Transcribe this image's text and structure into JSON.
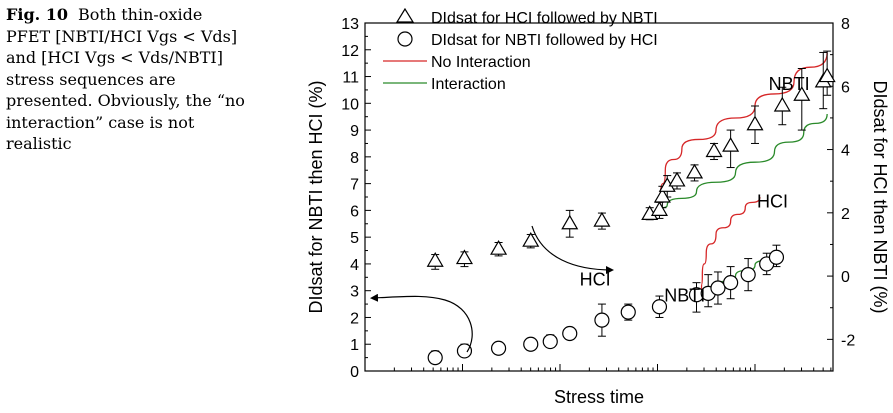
{
  "caption": {
    "label": "Fig. 10",
    "lines": [
      "Both thin-oxide",
      "PFET [NBTI/HCI Vgs < Vds]",
      "and [HCI Vgs < Vds/NBTI]",
      "stress sequences are",
      "presented. Obviously, the “no",
      "interaction” case is not",
      "realistic"
    ]
  },
  "chart_data": {
    "type": "scatter",
    "xlabel": "Stress time",
    "ylabel_left": "DIdsat for NBTI then HCI (%)",
    "ylabel_right": "DIdsat for HCI then NBTI (%)",
    "y_left_range": [
      0,
      13
    ],
    "y_left_ticks": [
      "0",
      "1",
      "2",
      "3",
      "4",
      "5",
      "6",
      "7",
      "8",
      "9",
      "10",
      "11",
      "12",
      "13"
    ],
    "y_right_range": [
      -3,
      8
    ],
    "y_right_ticks": [
      "-2",
      "0",
      "2",
      "4",
      "6",
      "8"
    ],
    "x_scale": "log",
    "x_range": [
      0,
      4.8
    ],
    "legend_position": "top-left",
    "legend": [
      {
        "marker": "triangle",
        "label": "DIdsat for HCI followed by NBTI"
      },
      {
        "marker": "circle",
        "label": "DIdsat for NBTI followed by HCI"
      },
      {
        "line": "#d62728",
        "label": "No Interaction"
      },
      {
        "line": "#2a8a2a",
        "label": "Interaction"
      }
    ],
    "annotations": [
      {
        "text": "NBTI",
        "x": 3.28,
        "y": 2.6
      },
      {
        "text": "HCI",
        "x": 2.36,
        "y": 3.2
      },
      {
        "text": "NBTI",
        "x": 4.35,
        "y": 10.5
      },
      {
        "text": "HCI",
        "x": 4.18,
        "y": 6.1
      }
    ],
    "series": [
      {
        "axis": "left",
        "marker": "circle",
        "points": [
          {
            "x": 0.72,
            "y": 0.5,
            "lo": 0.3,
            "hi": 0.75
          },
          {
            "x": 1.02,
            "y": 0.75,
            "lo": 0.55,
            "hi": 1.0
          },
          {
            "x": 1.37,
            "y": 0.85,
            "lo": 0.7,
            "hi": 1.0
          },
          {
            "x": 1.7,
            "y": 1.0,
            "lo": 0.8,
            "hi": 1.2
          },
          {
            "x": 1.9,
            "y": 1.1,
            "lo": 0.9,
            "hi": 1.35
          },
          {
            "x": 2.1,
            "y": 1.4,
            "lo": 1.2,
            "hi": 1.6
          },
          {
            "x": 2.43,
            "y": 1.9,
            "lo": 1.3,
            "hi": 2.5
          },
          {
            "x": 2.7,
            "y": 2.2,
            "lo": 1.9,
            "hi": 2.5
          },
          {
            "x": 3.02,
            "y": 2.4,
            "lo": 2.0,
            "hi": 2.8
          },
          {
            "x": 3.4,
            "y": 2.85,
            "lo": 2.2,
            "hi": 3.3
          },
          {
            "x": 3.52,
            "y": 2.9,
            "lo": 2.4,
            "hi": 3.6
          },
          {
            "x": 3.62,
            "y": 3.1,
            "lo": 2.5,
            "hi": 3.7
          },
          {
            "x": 3.75,
            "y": 3.3,
            "lo": 2.7,
            "hi": 3.9
          },
          {
            "x": 3.93,
            "y": 3.6,
            "lo": 3.0,
            "hi": 4.2
          },
          {
            "x": 4.12,
            "y": 4.0,
            "lo": 3.6,
            "hi": 4.4
          },
          {
            "x": 4.22,
            "y": 4.25,
            "lo": 3.9,
            "hi": 4.7
          }
        ]
      },
      {
        "axis": "left",
        "marker": "triangle",
        "points": [
          {
            "x": 0.72,
            "y": 4.1,
            "lo": 3.8,
            "hi": 4.35
          },
          {
            "x": 1.02,
            "y": 4.2,
            "lo": 3.9,
            "hi": 4.45
          },
          {
            "x": 1.37,
            "y": 4.55,
            "lo": 4.3,
            "hi": 4.8
          },
          {
            "x": 1.7,
            "y": 4.85,
            "lo": 4.6,
            "hi": 5.1
          },
          {
            "x": 2.1,
            "y": 5.5,
            "lo": 5.0,
            "hi": 6.0
          },
          {
            "x": 2.43,
            "y": 5.6,
            "lo": 5.3,
            "hi": 5.9
          },
          {
            "x": 2.92,
            "y": 5.85,
            "lo": 5.65,
            "hi": 6.1
          },
          {
            "x": 3.02,
            "y": 6.0,
            "lo": 5.7,
            "hi": 6.3
          },
          {
            "x": 3.05,
            "y": 6.5,
            "lo": 6.1,
            "hi": 6.9
          },
          {
            "x": 3.1,
            "y": 6.9,
            "lo": 6.5,
            "hi": 7.3
          },
          {
            "x": 3.2,
            "y": 7.1,
            "lo": 6.8,
            "hi": 7.4
          },
          {
            "x": 3.38,
            "y": 7.4,
            "lo": 7.1,
            "hi": 7.7
          },
          {
            "x": 3.58,
            "y": 8.2,
            "lo": 7.9,
            "hi": 8.5
          },
          {
            "x": 3.75,
            "y": 8.4,
            "lo": 7.6,
            "hi": 9.0
          },
          {
            "x": 4.0,
            "y": 9.2,
            "lo": 8.5,
            "hi": 9.9
          },
          {
            "x": 4.28,
            "y": 9.9,
            "lo": 9.2,
            "hi": 10.6
          },
          {
            "x": 4.48,
            "y": 10.3,
            "lo": 9.0,
            "hi": 11.3
          },
          {
            "x": 4.7,
            "y": 10.8,
            "lo": 9.8,
            "hi": 11.9
          },
          {
            "x": 4.74,
            "y": 11.0,
            "lo": 10.3,
            "hi": 11.95
          }
        ]
      },
      {
        "axis": "left",
        "line": "no-interaction",
        "color": "#d62728",
        "points": [
          [
            3.0,
            5.9
          ],
          [
            3.03,
            6.5
          ],
          [
            3.08,
            7.5
          ],
          [
            3.25,
            8.3
          ],
          [
            3.6,
            9.0
          ],
          [
            4.0,
            9.9
          ],
          [
            4.4,
            10.8
          ],
          [
            4.74,
            11.9
          ]
        ]
      },
      {
        "axis": "left",
        "line": "interaction",
        "color": "#2a8a2a",
        "points": [
          [
            3.0,
            6.0
          ],
          [
            3.1,
            6.2
          ],
          [
            3.4,
            6.7
          ],
          [
            3.8,
            7.4
          ],
          [
            4.2,
            8.2
          ],
          [
            4.5,
            8.9
          ],
          [
            4.74,
            9.6
          ]
        ]
      },
      {
        "axis": "left",
        "line": "no-interaction",
        "color": "#d62728",
        "points": [
          [
            3.45,
            2.9
          ],
          [
            3.46,
            3.6
          ],
          [
            3.5,
            4.4
          ],
          [
            3.6,
            5.1
          ],
          [
            3.75,
            5.6
          ],
          [
            3.9,
            6.1
          ],
          [
            4.05,
            6.5
          ]
        ]
      },
      {
        "axis": "left",
        "line": "interaction",
        "color": "#2a8a2a",
        "points": [
          [
            3.45,
            2.9
          ],
          [
            3.6,
            3.15
          ],
          [
            3.8,
            3.55
          ],
          [
            4.0,
            3.95
          ],
          [
            4.22,
            4.3
          ]
        ]
      }
    ]
  }
}
